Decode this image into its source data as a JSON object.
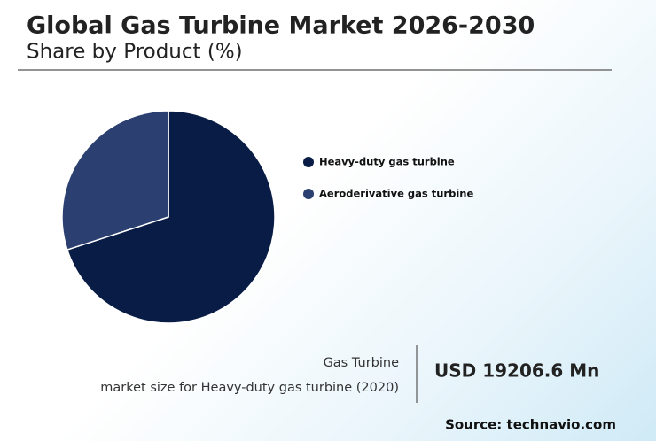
{
  "chart_data": {
    "type": "pie",
    "title": "Global Gas Turbine Market 2026-2030",
    "subtitle": "Share by Product (%)",
    "categories": [
      "Heavy-duty gas turbine",
      "Aeroderivative gas turbine"
    ],
    "values": [
      70,
      30
    ],
    "colors": [
      "#081c45",
      "#2b3f70"
    ]
  },
  "summary": {
    "label": "Gas Turbine",
    "sublabel": "market size for Heavy-duty gas turbine (2020)",
    "value": "USD 19206.6 Mn"
  },
  "source": "Source: technavio.com"
}
